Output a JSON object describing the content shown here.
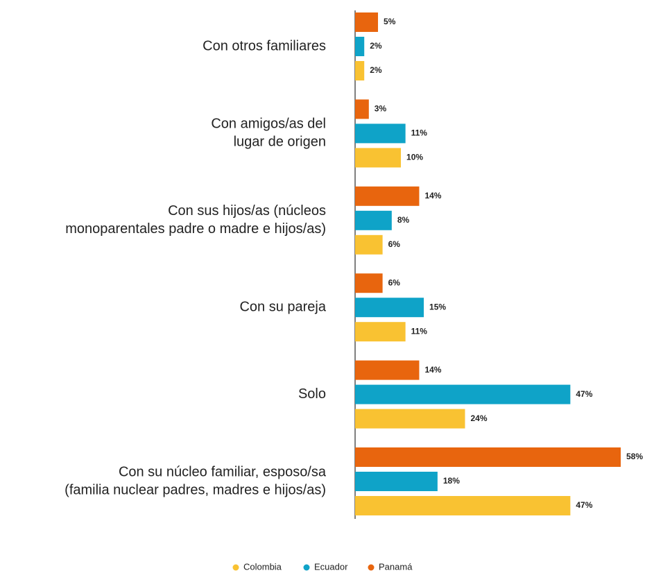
{
  "chart_data": {
    "type": "hbar",
    "categories": [
      [
        "Con otros familiares"
      ],
      [
        "Con amigos/as del",
        "lugar de origen"
      ],
      [
        "Con sus hijos/as (núcleos",
        "monoparentales padre o madre e hijos/as)"
      ],
      [
        "Con su pareja"
      ],
      [
        "Solo"
      ],
      [
        "Con su núcleo familiar, esposo/sa",
        "(familia nuclear padres, madres e hijos/as)"
      ]
    ],
    "series": [
      {
        "name": "Panamá",
        "color": "#e8650e",
        "values": [
          5,
          3,
          14,
          6,
          14,
          58
        ],
        "value_labels": [
          "5%",
          "3%",
          "14%",
          "6%",
          "14%",
          "58%"
        ]
      },
      {
        "name": "Ecuador",
        "color": "#0fa3c8",
        "values": [
          2,
          11,
          8,
          15,
          47,
          18
        ],
        "value_labels": [
          "2%",
          "11%",
          "8%",
          "15%",
          "47%",
          "18%"
        ]
      },
      {
        "name": "Colombia",
        "color": "#f9c232",
        "values": [
          2,
          10,
          6,
          11,
          24,
          47
        ],
        "value_labels": [
          "2%",
          "10%",
          "6%",
          "11%",
          "24%",
          "47%"
        ]
      }
    ],
    "xlim": [
      0,
      58
    ]
  }
}
